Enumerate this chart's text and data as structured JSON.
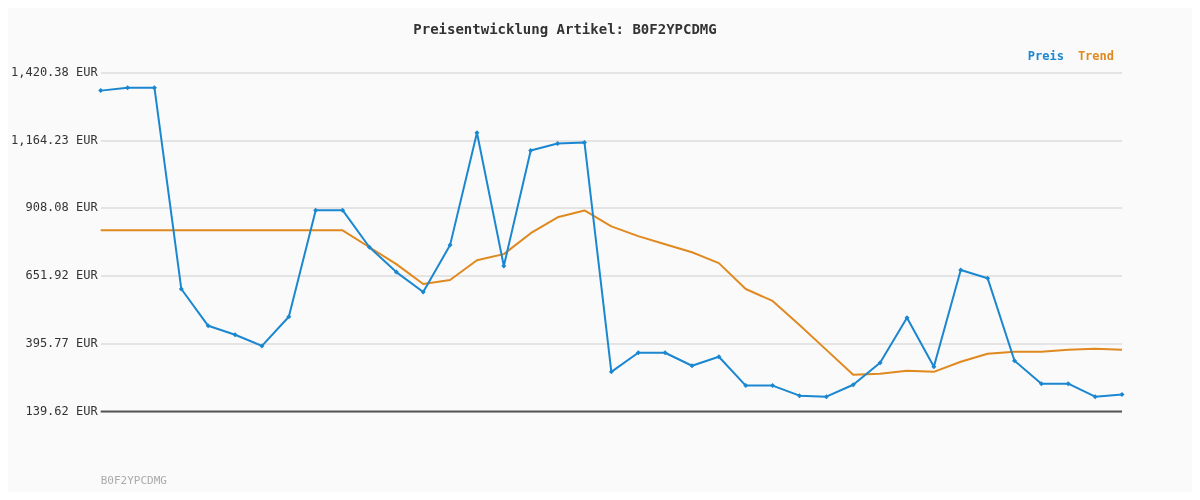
{
  "chart_data": {
    "type": "line",
    "title": "Preisentwicklung Artikel: B0F2YPCDMG",
    "categories": [
      null,
      null,
      null,
      null,
      null,
      null,
      null,
      null,
      null,
      null,
      null,
      null,
      null,
      null,
      null,
      null,
      null,
      null,
      null,
      null,
      null,
      null,
      null,
      null,
      null,
      null,
      null,
      null,
      null,
      null,
      null,
      null,
      null,
      null,
      null,
      null,
      null,
      null,
      null
    ],
    "series": [
      {
        "name": "Preis",
        "color": "#1a87d0",
        "marker": "diamond",
        "values": [
          1353,
          1364,
          1364,
          603,
          464,
          430,
          388,
          498,
          901,
          901,
          761,
          667,
          592,
          769,
          1194,
          690,
          1127,
          1153,
          1157,
          290,
          362,
          362,
          313,
          347,
          238,
          238,
          200,
          196,
          241,
          324,
          494,
          309,
          675,
          644,
          332,
          245,
          245,
          196,
          204
        ]
      },
      {
        "name": "Trend",
        "color": "#e0891f",
        "marker": "none",
        "values": [
          825,
          825,
          825,
          825,
          825,
          825,
          825,
          825,
          825,
          825,
          761,
          697,
          622,
          637,
          712,
          735,
          814,
          874,
          900,
          840,
          803,
          772,
          742,
          701,
          603,
          558,
          467,
          373,
          279,
          283,
          294,
          290,
          328,
          358,
          366,
          366,
          373,
          377,
          373
        ]
      }
    ],
    "ylim": [
      139.62,
      1420.38
    ],
    "yticks": [
      {
        "value": 139.62,
        "label": "139.62 EUR"
      },
      {
        "value": 395.77,
        "label": "395.77 EUR"
      },
      {
        "value": 651.92,
        "label": "651.92 EUR"
      },
      {
        "value": 908.08,
        "label": "908.08 EUR"
      },
      {
        "value": 1164.23,
        "label": "1,164.23 EUR"
      },
      {
        "value": 1420.38,
        "label": "1,420.38 EUR"
      }
    ],
    "grid": "y",
    "legend": "top right",
    "line_style": "solid",
    "annotations": [
      "B0F2YPCDMG"
    ]
  }
}
